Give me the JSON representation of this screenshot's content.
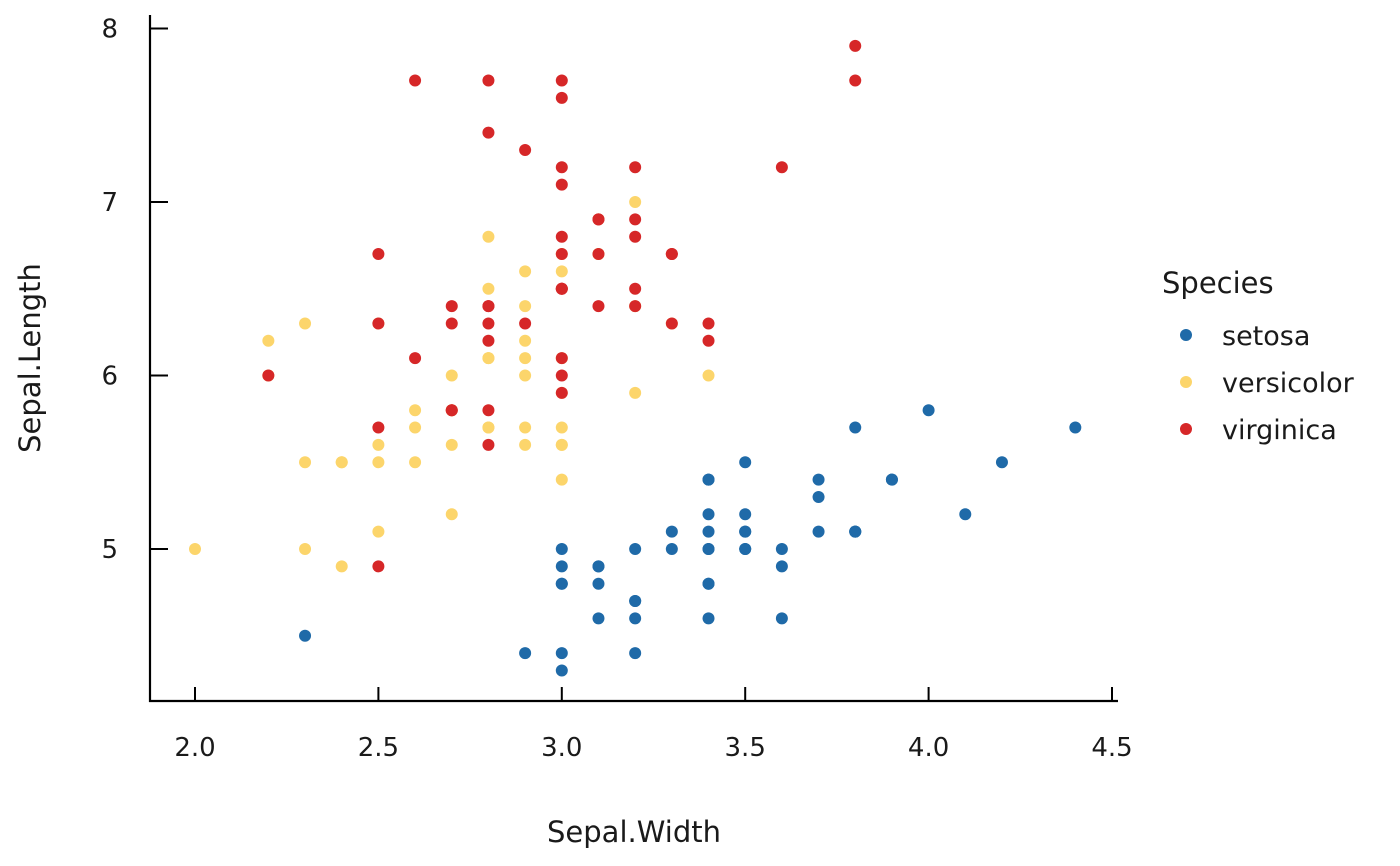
{
  "chart_data": {
    "type": "scatter",
    "xlabel": "Sepal.Width",
    "ylabel": "Sepal.Length",
    "xlim": [
      1.88,
      4.52
    ],
    "ylim": [
      4.18,
      8.08
    ],
    "xticks": [
      2.0,
      2.5,
      3.0,
      3.5,
      4.0,
      4.5
    ],
    "xtick_labels": [
      "2.0",
      "2.5",
      "3.0",
      "3.5",
      "4.0",
      "4.5"
    ],
    "yticks": [
      5,
      6,
      7,
      8
    ],
    "ytick_labels": [
      "5",
      "6",
      "7",
      "8"
    ],
    "grid": false,
    "legend": {
      "title": "Species",
      "position": "right"
    },
    "series": [
      {
        "name": "setosa",
        "color": "#1f6aa8",
        "points": [
          [
            3.5,
            5.1
          ],
          [
            3.0,
            4.9
          ],
          [
            3.2,
            4.7
          ],
          [
            3.1,
            4.6
          ],
          [
            3.6,
            5.0
          ],
          [
            3.9,
            5.4
          ],
          [
            3.4,
            4.6
          ],
          [
            3.4,
            5.0
          ],
          [
            2.9,
            4.4
          ],
          [
            3.1,
            4.9
          ],
          [
            3.7,
            5.4
          ],
          [
            3.4,
            4.8
          ],
          [
            3.0,
            4.8
          ],
          [
            3.0,
            4.3
          ],
          [
            4.0,
            5.8
          ],
          [
            4.4,
            5.7
          ],
          [
            3.9,
            5.4
          ],
          [
            3.5,
            5.1
          ],
          [
            3.8,
            5.7
          ],
          [
            3.8,
            5.1
          ],
          [
            3.4,
            5.4
          ],
          [
            3.7,
            5.1
          ],
          [
            3.6,
            4.6
          ],
          [
            3.3,
            5.1
          ],
          [
            3.4,
            4.8
          ],
          [
            3.0,
            5.0
          ],
          [
            3.4,
            5.0
          ],
          [
            3.5,
            5.2
          ],
          [
            3.4,
            5.2
          ],
          [
            3.2,
            4.7
          ],
          [
            3.1,
            4.8
          ],
          [
            3.4,
            5.4
          ],
          [
            4.1,
            5.2
          ],
          [
            4.2,
            5.5
          ],
          [
            3.1,
            4.9
          ],
          [
            3.2,
            5.0
          ],
          [
            3.5,
            5.5
          ],
          [
            3.6,
            4.9
          ],
          [
            3.0,
            4.4
          ],
          [
            3.4,
            5.1
          ],
          [
            3.5,
            5.0
          ],
          [
            2.3,
            4.5
          ],
          [
            3.2,
            4.4
          ],
          [
            3.5,
            5.0
          ],
          [
            3.8,
            5.1
          ],
          [
            3.0,
            4.8
          ],
          [
            3.8,
            5.1
          ],
          [
            3.2,
            4.6
          ],
          [
            3.7,
            5.3
          ],
          [
            3.3,
            5.0
          ]
        ]
      },
      {
        "name": "versicolor",
        "color": "#fcd56b",
        "points": [
          [
            3.2,
            7.0
          ],
          [
            3.2,
            6.4
          ],
          [
            3.1,
            6.9
          ],
          [
            2.3,
            5.5
          ],
          [
            2.8,
            6.5
          ],
          [
            2.8,
            5.7
          ],
          [
            3.3,
            6.3
          ],
          [
            2.4,
            4.9
          ],
          [
            2.9,
            6.6
          ],
          [
            2.7,
            5.2
          ],
          [
            2.0,
            5.0
          ],
          [
            3.0,
            5.9
          ],
          [
            2.2,
            6.0
          ],
          [
            2.9,
            6.1
          ],
          [
            2.9,
            5.6
          ],
          [
            3.1,
            6.7
          ],
          [
            3.0,
            5.6
          ],
          [
            2.7,
            5.8
          ],
          [
            2.2,
            6.2
          ],
          [
            2.5,
            5.6
          ],
          [
            3.2,
            5.9
          ],
          [
            2.8,
            6.1
          ],
          [
            2.5,
            6.3
          ],
          [
            2.8,
            6.1
          ],
          [
            2.9,
            6.4
          ],
          [
            3.0,
            6.6
          ],
          [
            2.8,
            6.8
          ],
          [
            3.0,
            6.7
          ],
          [
            2.9,
            6.0
          ],
          [
            2.6,
            5.7
          ],
          [
            2.4,
            5.5
          ],
          [
            2.4,
            5.5
          ],
          [
            2.7,
            5.8
          ],
          [
            2.7,
            6.0
          ],
          [
            3.0,
            5.4
          ],
          [
            3.4,
            6.0
          ],
          [
            3.1,
            6.7
          ],
          [
            2.3,
            6.3
          ],
          [
            3.0,
            5.6
          ],
          [
            2.5,
            5.5
          ],
          [
            2.6,
            5.5
          ],
          [
            3.0,
            6.1
          ],
          [
            2.6,
            5.8
          ],
          [
            2.3,
            5.0
          ],
          [
            2.7,
            5.6
          ],
          [
            3.0,
            5.7
          ],
          [
            2.9,
            5.7
          ],
          [
            2.9,
            6.2
          ],
          [
            2.5,
            5.1
          ],
          [
            2.8,
            5.7
          ]
        ]
      },
      {
        "name": "virginica",
        "color": "#d62728",
        "points": [
          [
            3.3,
            6.3
          ],
          [
            2.7,
            5.8
          ],
          [
            3.0,
            7.1
          ],
          [
            2.9,
            6.3
          ],
          [
            3.0,
            6.5
          ],
          [
            3.0,
            7.6
          ],
          [
            2.5,
            4.9
          ],
          [
            2.9,
            7.3
          ],
          [
            2.5,
            6.7
          ],
          [
            3.6,
            7.2
          ],
          [
            3.2,
            6.5
          ],
          [
            2.7,
            6.4
          ],
          [
            3.0,
            6.8
          ],
          [
            2.5,
            5.7
          ],
          [
            2.8,
            5.8
          ],
          [
            3.2,
            6.4
          ],
          [
            3.0,
            6.5
          ],
          [
            3.8,
            7.7
          ],
          [
            2.6,
            7.7
          ],
          [
            2.2,
            6.0
          ],
          [
            3.2,
            6.9
          ],
          [
            2.8,
            5.6
          ],
          [
            2.8,
            7.7
          ],
          [
            2.7,
            6.3
          ],
          [
            3.3,
            6.7
          ],
          [
            3.2,
            7.2
          ],
          [
            2.8,
            6.2
          ],
          [
            3.0,
            6.1
          ],
          [
            2.8,
            6.4
          ],
          [
            3.0,
            7.2
          ],
          [
            2.8,
            7.4
          ],
          [
            3.8,
            7.9
          ],
          [
            2.8,
            6.4
          ],
          [
            2.8,
            6.3
          ],
          [
            2.6,
            6.1
          ],
          [
            3.0,
            7.7
          ],
          [
            3.4,
            6.3
          ],
          [
            3.1,
            6.4
          ],
          [
            3.0,
            6.0
          ],
          [
            3.1,
            6.9
          ],
          [
            3.1,
            6.7
          ],
          [
            3.1,
            6.9
          ],
          [
            2.7,
            5.8
          ],
          [
            3.2,
            6.8
          ],
          [
            3.3,
            6.7
          ],
          [
            3.0,
            6.7
          ],
          [
            2.5,
            6.3
          ],
          [
            3.0,
            6.5
          ],
          [
            3.4,
            6.2
          ],
          [
            3.0,
            5.9
          ]
        ]
      }
    ]
  }
}
